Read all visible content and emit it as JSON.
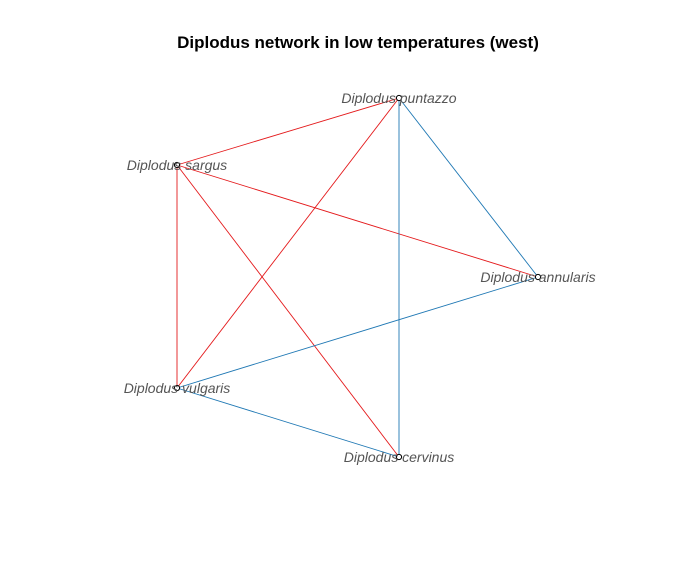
{
  "title": "Diplodus network in low temperatures (west)",
  "colors": {
    "red_edge": "#e41a1c",
    "blue_edge": "#1f78b4",
    "label": "#555555",
    "node_outline": "#000000"
  },
  "nodes": [
    {
      "id": "puntazzo",
      "label": "Diplodus puntazzo"
    },
    {
      "id": "sargus",
      "label": "Diplodus sargus"
    },
    {
      "id": "annularis",
      "label": "Diplodus annularis"
    },
    {
      "id": "vulgaris",
      "label": "Diplodus vulgaris"
    },
    {
      "id": "cervinus",
      "label": "Diplodus cervinus"
    }
  ],
  "edges": [
    {
      "from": "sargus",
      "to": "puntazzo",
      "color": "red"
    },
    {
      "from": "sargus",
      "to": "annularis",
      "color": "red"
    },
    {
      "from": "sargus",
      "to": "vulgaris",
      "color": "red"
    },
    {
      "from": "sargus",
      "to": "cervinus",
      "color": "red"
    },
    {
      "from": "puntazzo",
      "to": "vulgaris",
      "color": "red"
    },
    {
      "from": "puntazzo",
      "to": "annularis",
      "color": "blue"
    },
    {
      "from": "puntazzo",
      "to": "cervinus",
      "color": "blue"
    },
    {
      "from": "annularis",
      "to": "vulgaris",
      "color": "blue"
    },
    {
      "from": "vulgaris",
      "to": "cervinus",
      "color": "blue"
    }
  ]
}
